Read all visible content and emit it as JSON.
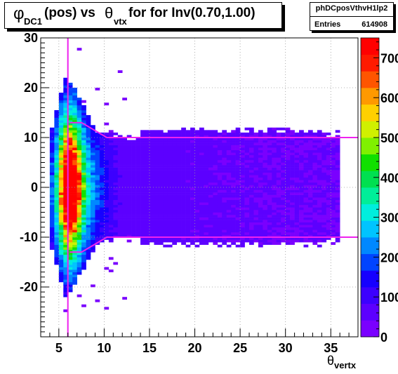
{
  "title": {
    "phi": "φ",
    "phi_sub": "DC1",
    "mid": "(pos) vs ",
    "theta": "θ",
    "theta_sub": "vtx",
    "tail": " for for Inv(0.70,1.00)"
  },
  "stats": {
    "name": "phDCposVthvH1lp2",
    "entries_label": "Entries",
    "entries_value": "614908"
  },
  "chart_data": {
    "type": "heatmap",
    "xlabel": "θ",
    "xlabel_sub": "vertx",
    "xlim": [
      3,
      38
    ],
    "ylim": [
      -30,
      30
    ],
    "x_ticks": [
      5,
      10,
      15,
      20,
      25,
      30,
      35
    ],
    "y_ticks": [
      -20,
      -10,
      0,
      10,
      20,
      30
    ],
    "z_range": [
      0,
      750
    ],
    "z_ticks": [
      0,
      100,
      200,
      300,
      400,
      500,
      600,
      700
    ],
    "palette": [
      "#7a00ff",
      "#5c00ff",
      "#3c00ff",
      "#1600ff",
      "#0044ff",
      "#0088ff",
      "#00c4ff",
      "#00eedd",
      "#00ee99",
      "#00e050",
      "#10e000",
      "#80f000",
      "#d0f000",
      "#ffd000",
      "#ff9900",
      "#ff5500",
      "#ff1a00",
      "#ff0000"
    ],
    "grid": true,
    "cut_lines": [
      {
        "name": "vertical",
        "color": "#ee22ee",
        "x": [
          6,
          6
        ],
        "y": [
          -30,
          30
        ]
      },
      {
        "name": "upper",
        "color": "#ee22ee",
        "x": [
          6.2,
          7.5,
          10.3,
          38
        ],
        "y": [
          13,
          13,
          10,
          10
        ]
      },
      {
        "name": "lower",
        "color": "#ee22ee",
        "x": [
          6.2,
          7.5,
          10.3,
          38
        ],
        "y": [
          -13,
          -13,
          -10,
          -10
        ]
      }
    ]
  }
}
